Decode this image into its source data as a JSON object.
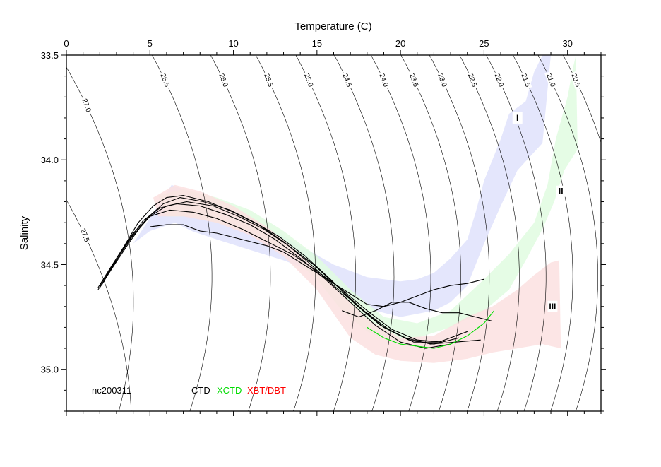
{
  "chart_data": {
    "type": "scatter",
    "title": "",
    "xlabel": "Temperature (C)",
    "ylabel": "Salinity",
    "xlim": [
      0,
      32
    ],
    "ylim": [
      35.2,
      33.5
    ],
    "y_axis_inverted": true,
    "x_axis_position": "top",
    "x_ticks": [
      0,
      5,
      10,
      15,
      20,
      25,
      30
    ],
    "x_tick_labels": [
      "0",
      "5",
      "10",
      "15",
      "20",
      "25",
      "30"
    ],
    "y_ticks": [
      33.5,
      34.0,
      34.5,
      35.0
    ],
    "y_tick_labels": [
      "33.5",
      "34.0",
      "34.5",
      "35.0"
    ],
    "grid": false,
    "density_contours": [
      {
        "label": "27.5",
        "mid_T": 1.1,
        "mid_S": 34.36
      },
      {
        "label": "27.0",
        "mid_T": 1.2,
        "mid_S": 33.74
      },
      {
        "label": "26.5",
        "mid_T": 5.9,
        "mid_S": 33.62
      },
      {
        "label": "26.0",
        "mid_T": 9.4,
        "mid_S": 33.62
      },
      {
        "label": "25.5",
        "mid_T": 12.1,
        "mid_S": 33.62
      },
      {
        "label": "25.0",
        "mid_T": 14.5,
        "mid_S": 33.62
      },
      {
        "label": "24.5",
        "mid_T": 16.8,
        "mid_S": 33.62
      },
      {
        "label": "24.0",
        "mid_T": 19.0,
        "mid_S": 33.62
      },
      {
        "label": "23.5",
        "mid_T": 20.8,
        "mid_S": 33.62
      },
      {
        "label": "23.0",
        "mid_T": 22.5,
        "mid_S": 33.62
      },
      {
        "label": "22.5",
        "mid_T": 24.3,
        "mid_S": 33.62
      },
      {
        "label": "22.0",
        "mid_T": 25.9,
        "mid_S": 33.62
      },
      {
        "label": "21.5",
        "mid_T": 27.5,
        "mid_S": 33.62
      },
      {
        "label": "21.0",
        "mid_T": 29.0,
        "mid_S": 33.62
      },
      {
        "label": "20.5",
        "mid_T": 30.5,
        "mid_S": 33.62
      }
    ],
    "regions": [
      {
        "label": "I",
        "color": "#e4e6fc",
        "label_T": 27.0,
        "label_S": 33.8,
        "upper_edge": [
          [
            6.3,
            34.12
          ],
          [
            8,
            34.17
          ],
          [
            10,
            34.24
          ],
          [
            12,
            34.32
          ],
          [
            14,
            34.41
          ],
          [
            16,
            34.5
          ],
          [
            18,
            34.56
          ],
          [
            20,
            34.58
          ],
          [
            21,
            34.57
          ],
          [
            22,
            34.54
          ],
          [
            23,
            34.47
          ],
          [
            24,
            34.38
          ],
          [
            24.5,
            34.25
          ],
          [
            25,
            34.1
          ],
          [
            26,
            33.9
          ],
          [
            26.5,
            33.78
          ],
          [
            27.5,
            33.72
          ],
          [
            28,
            33.58
          ],
          [
            28.5,
            33.5
          ],
          [
            29,
            33.5
          ]
        ],
        "lower_edge": [
          [
            29,
            33.5
          ],
          [
            28.5,
            33.92
          ],
          [
            27,
            34.05
          ],
          [
            26,
            34.22
          ],
          [
            25,
            34.4
          ],
          [
            24,
            34.6
          ],
          [
            23,
            34.68
          ],
          [
            22,
            34.72
          ],
          [
            20,
            34.75
          ],
          [
            18.5,
            34.72
          ],
          [
            17,
            34.64
          ],
          [
            15,
            34.54
          ],
          [
            13,
            34.48
          ],
          [
            11,
            34.43
          ],
          [
            9,
            34.38
          ],
          [
            7.5,
            34.34
          ],
          [
            6.5,
            34.3
          ],
          [
            5,
            34.34
          ],
          [
            4,
            34.4
          ]
        ]
      },
      {
        "label": "II",
        "color": "#e0fbe0",
        "label_T": 29.6,
        "label_S": 34.15,
        "upper_edge": [
          [
            5.5,
            34.17
          ],
          [
            7,
            34.14
          ],
          [
            9,
            34.18
          ],
          [
            11,
            34.24
          ],
          [
            13,
            34.34
          ],
          [
            15,
            34.46
          ],
          [
            17,
            34.62
          ],
          [
            19,
            34.75
          ],
          [
            21,
            34.78
          ],
          [
            23,
            34.72
          ],
          [
            25,
            34.57
          ],
          [
            26.5,
            34.45
          ],
          [
            27.5,
            34.35
          ],
          [
            28,
            34.3
          ],
          [
            28.8,
            34.12
          ],
          [
            29.3,
            33.9
          ],
          [
            30,
            33.7
          ],
          [
            30.3,
            33.57
          ],
          [
            30.5,
            33.5
          ]
        ],
        "lower_edge": [
          [
            30.5,
            33.5
          ],
          [
            30.6,
            33.95
          ],
          [
            29.8,
            34.05
          ],
          [
            29.2,
            34.2
          ],
          [
            28.5,
            34.33
          ],
          [
            27.5,
            34.48
          ],
          [
            26.5,
            34.62
          ],
          [
            25,
            34.72
          ],
          [
            23,
            34.8
          ],
          [
            21,
            34.85
          ],
          [
            19.5,
            34.87
          ],
          [
            18,
            34.82
          ],
          [
            16.5,
            34.72
          ],
          [
            15,
            34.57
          ],
          [
            13,
            34.43
          ],
          [
            11,
            34.35
          ],
          [
            9,
            34.3
          ],
          [
            7.5,
            34.27
          ],
          [
            6,
            34.27
          ]
        ]
      },
      {
        "label": "III",
        "color": "#fce0e0",
        "label_T": 29.1,
        "label_S": 34.7,
        "upper_edge": [
          [
            5.2,
            34.18
          ],
          [
            6.5,
            34.12
          ],
          [
            8,
            34.15
          ],
          [
            10,
            34.22
          ],
          [
            12,
            34.32
          ],
          [
            14,
            34.45
          ],
          [
            16,
            34.6
          ],
          [
            18,
            34.76
          ],
          [
            20,
            34.85
          ],
          [
            22,
            34.84
          ],
          [
            24,
            34.75
          ],
          [
            25.5,
            34.7
          ],
          [
            27,
            34.62
          ],
          [
            28,
            34.55
          ],
          [
            29,
            34.49
          ],
          [
            29.5,
            34.48
          ]
        ],
        "lower_edge": [
          [
            29.5,
            34.48
          ],
          [
            29.6,
            34.9
          ],
          [
            28.5,
            34.88
          ],
          [
            27,
            34.9
          ],
          [
            25.5,
            34.92
          ],
          [
            24,
            34.95
          ],
          [
            22,
            34.97
          ],
          [
            20,
            34.96
          ],
          [
            18.5,
            34.93
          ],
          [
            17,
            34.85
          ],
          [
            15,
            34.62
          ],
          [
            13,
            34.46
          ],
          [
            11,
            34.36
          ],
          [
            9,
            34.3
          ],
          [
            7,
            34.27
          ],
          [
            5.5,
            34.27
          ]
        ]
      }
    ],
    "series": [
      {
        "name": "CTD",
        "color": "#000000",
        "profiles": [
          [
            [
              1.9,
              34.61
            ],
            [
              2.6,
              34.52
            ],
            [
              3.4,
              34.42
            ],
            [
              4.3,
              34.3
            ],
            [
              5.2,
              34.22
            ],
            [
              6.0,
              34.18
            ],
            [
              7.0,
              34.17
            ],
            [
              8.5,
              34.2
            ],
            [
              10,
              34.25
            ],
            [
              11.5,
              34.31
            ],
            [
              13,
              34.39
            ],
            [
              14.5,
              34.49
            ],
            [
              16,
              34.6
            ],
            [
              17.5,
              34.7
            ],
            [
              19,
              34.8
            ],
            [
              20.5,
              34.86
            ],
            [
              22,
              34.88
            ],
            [
              23.5,
              34.85
            ]
          ],
          [
            [
              1.9,
              34.62
            ],
            [
              2.7,
              34.52
            ],
            [
              3.6,
              34.4
            ],
            [
              4.6,
              34.29
            ],
            [
              5.6,
              34.23
            ],
            [
              6.6,
              34.21
            ],
            [
              8,
              34.22
            ],
            [
              9.5,
              34.26
            ],
            [
              11,
              34.31
            ],
            [
              12.5,
              34.38
            ],
            [
              14,
              34.47
            ],
            [
              15.5,
              34.57
            ],
            [
              17,
              34.68
            ],
            [
              18.5,
              34.79
            ],
            [
              20,
              34.87
            ],
            [
              21.5,
              34.9
            ],
            [
              23,
              34.88
            ]
          ],
          [
            [
              2.0,
              34.6
            ],
            [
              2.9,
              34.49
            ],
            [
              3.9,
              34.37
            ],
            [
              5.0,
              34.27
            ],
            [
              6.0,
              34.22
            ],
            [
              7.2,
              34.2
            ],
            [
              8.8,
              34.22
            ],
            [
              10.3,
              34.27
            ],
            [
              11.8,
              34.33
            ],
            [
              13.3,
              34.41
            ],
            [
              14.8,
              34.5
            ],
            [
              16.3,
              34.61
            ],
            [
              17.8,
              34.72
            ],
            [
              19.3,
              34.81
            ],
            [
              20.8,
              34.87
            ],
            [
              22.3,
              34.87
            ],
            [
              24,
              34.82
            ]
          ],
          [
            [
              2.0,
              34.61
            ],
            [
              2.8,
              34.51
            ],
            [
              3.8,
              34.39
            ],
            [
              4.8,
              34.28
            ],
            [
              5.8,
              34.21
            ],
            [
              6.8,
              34.18
            ],
            [
              8.2,
              34.2
            ],
            [
              9.8,
              34.24
            ],
            [
              11.3,
              34.3
            ],
            [
              12.8,
              34.37
            ],
            [
              14.3,
              34.46
            ],
            [
              15.8,
              34.57
            ],
            [
              17.3,
              34.69
            ],
            [
              18.8,
              34.79
            ],
            [
              20.3,
              34.85
            ],
            [
              21.8,
              34.88
            ],
            [
              23.3,
              34.87
            ],
            [
              24.8,
              34.86
            ]
          ],
          [
            [
              2.1,
              34.6
            ],
            [
              3.0,
              34.47
            ],
            [
              4.0,
              34.35
            ],
            [
              5.0,
              34.27
            ],
            [
              6.2,
              34.24
            ],
            [
              7.6,
              34.25
            ],
            [
              9,
              34.28
            ],
            [
              10.5,
              34.33
            ],
            [
              12,
              34.39
            ],
            [
              13.5,
              34.45
            ],
            [
              15,
              34.53
            ],
            [
              16.5,
              34.62
            ],
            [
              18,
              34.72
            ],
            [
              19.5,
              34.81
            ],
            [
              21,
              34.86
            ],
            [
              22.5,
              34.87
            ]
          ],
          [
            [
              5,
              34.32
            ],
            [
              6,
              34.31
            ],
            [
              7,
              34.31
            ],
            [
              8,
              34.34
            ],
            [
              9,
              34.35
            ],
            [
              10,
              34.37
            ],
            [
              11,
              34.39
            ],
            [
              12,
              34.41
            ],
            [
              13,
              34.44
            ],
            [
              14,
              34.49
            ],
            [
              15,
              34.54
            ],
            [
              16,
              34.59
            ],
            [
              17,
              34.64
            ],
            [
              18,
              34.69
            ],
            [
              19,
              34.7
            ],
            [
              20,
              34.68
            ],
            [
              21,
              34.65
            ],
            [
              22,
              34.62
            ],
            [
              23,
              34.6
            ],
            [
              24,
              34.59
            ],
            [
              25,
              34.57
            ]
          ],
          [
            [
              16.5,
              34.72
            ],
            [
              17.5,
              34.75
            ],
            [
              18.5,
              34.72
            ],
            [
              19.5,
              34.68
            ],
            [
              20.5,
              34.68
            ],
            [
              21.5,
              34.71
            ],
            [
              22.5,
              34.73
            ],
            [
              23.5,
              34.73
            ],
            [
              24.5,
              34.75
            ],
            [
              25.5,
              34.77
            ]
          ]
        ]
      },
      {
        "name": "XCTD",
        "color": "#00dd00",
        "profiles": [
          [
            [
              18,
              34.8
            ],
            [
              19,
              34.85
            ],
            [
              20,
              34.88
            ],
            [
              21,
              34.89
            ],
            [
              22,
              34.9
            ],
            [
              23,
              34.88
            ],
            [
              24,
              34.84
            ],
            [
              25,
              34.78
            ],
            [
              25.6,
              34.72
            ]
          ]
        ]
      },
      {
        "name": "XBT/DBT",
        "color": "#ff0000",
        "profiles": []
      }
    ],
    "annotations": [
      {
        "text": "nc200311",
        "T": 1.5,
        "S": 35.1,
        "color": "#000000"
      }
    ]
  }
}
